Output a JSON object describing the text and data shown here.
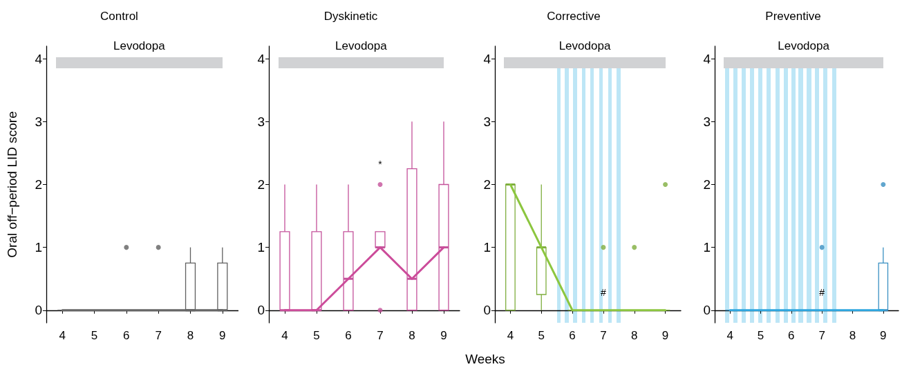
{
  "chart_data": [
    {
      "type": "box",
      "title": "Control",
      "ylabel": "Oral off−period LID score",
      "categories": [
        "4",
        "5",
        "6",
        "7",
        "8",
        "9"
      ],
      "ylim": [
        -0.2,
        4.2
      ],
      "yticks": [
        0,
        1,
        2,
        3,
        4
      ],
      "marker": "circle",
      "annotations": [
        "Levodopa"
      ],
      "series": [
        {
          "color": "#606060",
          "boxes": [
            {
              "low": 0,
              "q1": 0,
              "median": 0,
              "q3": 0,
              "high": 0
            },
            {
              "low": 0,
              "q1": 0,
              "median": 0,
              "q3": 0,
              "high": 0
            },
            {
              "low": 0,
              "q1": 0,
              "median": 0,
              "q3": 0,
              "high": 0,
              "outliers": [
                1
              ]
            },
            {
              "low": 0,
              "q1": 0,
              "median": 0,
              "q3": 0,
              "high": 0,
              "outliers": [
                1
              ]
            },
            {
              "low": 0,
              "q1": 0,
              "median": 0,
              "q3": 0.75,
              "high": 1
            },
            {
              "low": 0,
              "q1": 0,
              "median": 0,
              "q3": 0.75,
              "high": 1
            }
          ]
        },
        {
          "type": "line",
          "marker": "none",
          "color": "#666666",
          "values": [
            0,
            0,
            0,
            0,
            0,
            0
          ]
        }
      ]
    },
    {
      "type": "box",
      "title": "Dyskinetic",
      "categories": [
        "4",
        "5",
        "6",
        "7",
        "8",
        "9"
      ],
      "ylim": [
        -0.2,
        4.2
      ],
      "yticks": [
        0,
        1,
        2,
        3,
        4
      ],
      "marker": "circle",
      "annotations": [
        "Levodopa",
        "*"
      ],
      "series": [
        {
          "color": "#c4519a",
          "boxes": [
            {
              "low": 0,
              "q1": 0,
              "median": 0,
              "q3": 1.25,
              "high": 2
            },
            {
              "low": 0,
              "q1": 0,
              "median": 0,
              "q3": 1.25,
              "high": 2
            },
            {
              "low": 0,
              "q1": 0,
              "median": 0.5,
              "q3": 1.25,
              "high": 2
            },
            {
              "low": 1,
              "q1": 1,
              "median": 1,
              "q3": 1.25,
              "high": 1.25,
              "outliers": [
                2,
                0
              ]
            },
            {
              "low": 0,
              "q1": 0,
              "median": 0.5,
              "q3": 2.25,
              "high": 3
            },
            {
              "low": 0,
              "q1": 0,
              "median": 1,
              "q3": 2,
              "high": 3
            }
          ]
        },
        {
          "type": "line",
          "marker": "none",
          "color": "#cc4c9a",
          "values": [
            0,
            0,
            0.5,
            1,
            0.5,
            1
          ]
        }
      ]
    },
    {
      "type": "box",
      "title": "Corrective",
      "xlabel": "Weeks",
      "categories": [
        "4",
        "5",
        "6",
        "7",
        "8",
        "9"
      ],
      "ylim": [
        -0.2,
        4.2
      ],
      "yticks": [
        0,
        1,
        2,
        3,
        4
      ],
      "marker": "circle",
      "annotations": [
        "Levodopa",
        {
          "text": "#",
          "x": "7",
          "y": 0
        }
      ],
      "series": [
        {
          "color": "#7fae3e",
          "boxes": [
            {
              "low": 0,
              "q1": 0,
              "median": 2,
              "q3": 2,
              "high": 2
            },
            {
              "low": 0,
              "q1": 0.25,
              "median": 1,
              "q3": 1,
              "high": 2
            },
            {
              "low": 0,
              "q1": 0,
              "median": 0,
              "q3": 0,
              "high": 0
            },
            {
              "low": 0,
              "q1": 0,
              "median": 0,
              "q3": 0,
              "high": 0,
              "outliers": [
                1
              ]
            },
            {
              "low": 0,
              "q1": 0,
              "median": 0,
              "q3": 0,
              "high": 0,
              "outliers": [
                1
              ]
            },
            {
              "low": 0,
              "q1": 0,
              "median": 0,
              "q3": 0,
              "high": 0,
              "outliers": [
                2
              ]
            }
          ]
        },
        {
          "type": "line",
          "marker": "none",
          "color": "#8cc63f",
          "values": [
            2,
            1,
            0,
            0,
            0,
            0
          ]
        }
      ]
    },
    {
      "type": "box",
      "title": "Preventive",
      "categories": [
        "4",
        "5",
        "6",
        "7",
        "8",
        "9"
      ],
      "ylim": [
        -0.2,
        4.2
      ],
      "yticks": [
        0,
        1,
        2,
        3,
        4
      ],
      "marker": "circle",
      "annotations": [
        "Levodopa",
        {
          "text": "#",
          "x": "7",
          "y": 0
        }
      ],
      "series": [
        {
          "color": "#3a90c2",
          "boxes": [
            {
              "low": 0,
              "q1": 0,
              "median": 0,
              "q3": 0,
              "high": 0
            },
            {
              "low": 0,
              "q1": 0,
              "median": 0,
              "q3": 0,
              "high": 0
            },
            {
              "low": 0,
              "q1": 0,
              "median": 0,
              "q3": 0,
              "high": 0
            },
            {
              "low": 0,
              "q1": 0,
              "median": 0,
              "q3": 0,
              "high": 0,
              "outliers": [
                1
              ]
            },
            {
              "low": 0,
              "q1": 0,
              "median": 0,
              "q3": 0,
              "high": 0
            },
            {
              "low": 0,
              "q1": 0,
              "median": 0,
              "q3": 0.75,
              "high": 1,
              "outliers": [
                2
              ]
            }
          ]
        },
        {
          "type": "line",
          "marker": "none",
          "color": "#2ea6df",
          "values": [
            0,
            0,
            0,
            0,
            0,
            0
          ]
        }
      ]
    }
  ]
}
